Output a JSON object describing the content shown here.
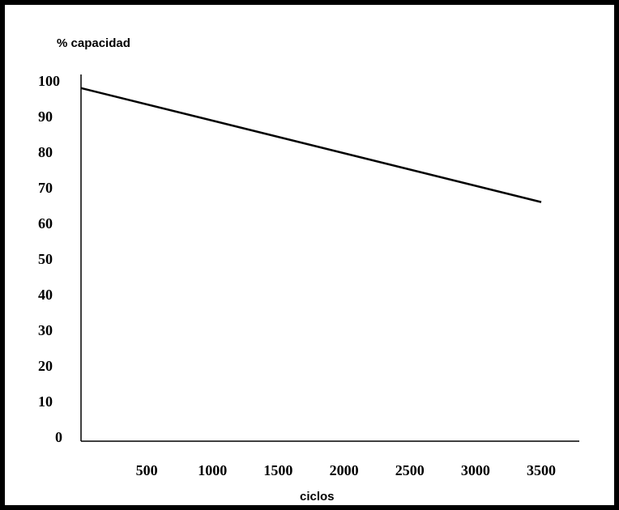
{
  "chart_data": {
    "type": "line",
    "title": "",
    "ylabel": "% capacidad",
    "xlabel": "ciclos",
    "x_ticks": [
      500,
      1000,
      1500,
      2000,
      2500,
      3000,
      3500
    ],
    "y_ticks": [
      0,
      10,
      20,
      30,
      40,
      50,
      60,
      70,
      80,
      90,
      100
    ],
    "xlim": [
      0,
      3700
    ],
    "ylim": [
      0,
      100
    ],
    "grid": false,
    "series": [
      {
        "x": [
          0,
          3500
        ],
        "y": [
          98,
          66
        ]
      }
    ]
  }
}
